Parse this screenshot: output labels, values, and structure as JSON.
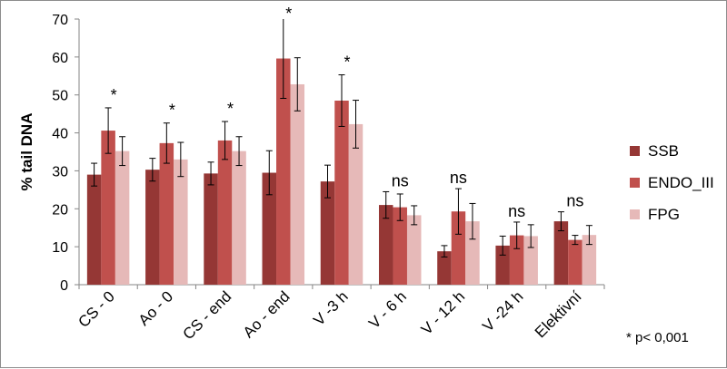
{
  "chart_data": {
    "type": "bar",
    "ylabel": "% tail DNA",
    "xlabel": "",
    "ylim": [
      0,
      70
    ],
    "yticks": [
      0,
      10,
      20,
      30,
      40,
      50,
      60,
      70
    ],
    "grid": false,
    "legend_position": "right",
    "categories": [
      "CS - 0",
      "Ao - 0",
      "CS - end",
      "Ao - end",
      "V -3 h",
      "V - 6 h",
      "V - 12 h",
      "V -24 h",
      "Elektivní"
    ],
    "series": [
      {
        "name": "SSB",
        "color": "#953735",
        "values": [
          29,
          30.3,
          29.3,
          29.5,
          27.2,
          21,
          8.8,
          10.3,
          16.7
        ],
        "errors": [
          3,
          3,
          3,
          5.8,
          4.3,
          3.5,
          1.5,
          2.5,
          2.5
        ]
      },
      {
        "name": "ENDO_III",
        "color": "#c0504d",
        "values": [
          40.6,
          37.3,
          38,
          59.6,
          48.5,
          20.4,
          19.3,
          13,
          11.8
        ],
        "errors": [
          6,
          5.3,
          5,
          10.5,
          6.8,
          3.5,
          6,
          3.5,
          1.2
        ]
      },
      {
        "name": "FPG",
        "color": "#e6b9b8",
        "values": [
          35.2,
          33,
          35.2,
          52.8,
          42.3,
          18.3,
          16.7,
          12.8,
          13.1
        ],
        "errors": [
          3.8,
          4.5,
          3.8,
          7,
          6.3,
          2.5,
          4.7,
          3,
          2.5
        ]
      }
    ],
    "annotations": [
      "*",
      "*",
      "*",
      "*",
      "*",
      "ns",
      "ns",
      "ns",
      "ns"
    ],
    "footnote": "* p< 0,001"
  }
}
